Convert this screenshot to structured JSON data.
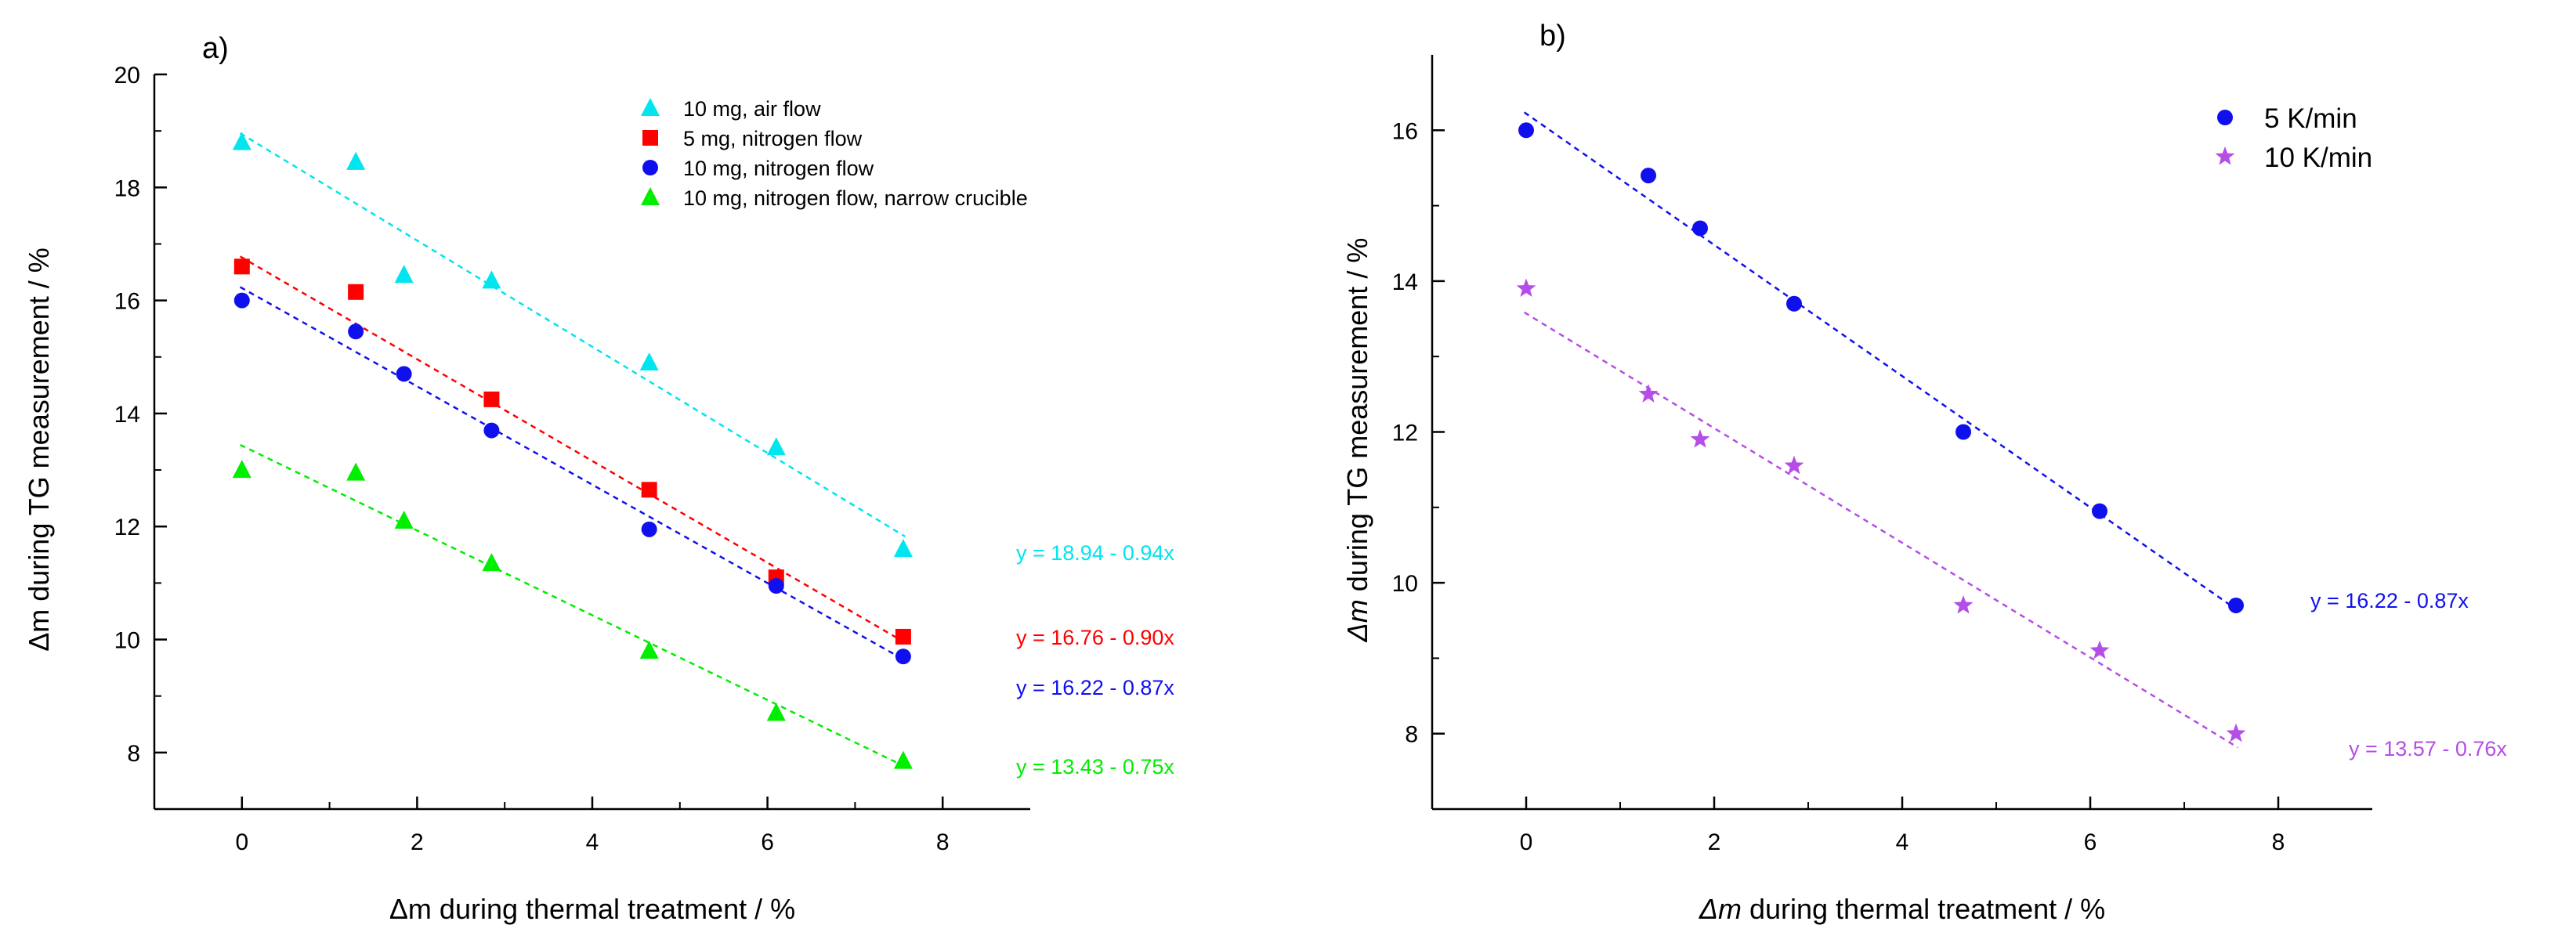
{
  "chart_data": [
    {
      "type": "scatter",
      "panel_label": "a)",
      "xlabel_symbol": "Δm",
      "xlabel_rest": " during thermal treatment / %",
      "ylabel_symbol": "Δm",
      "ylabel_rest": " during TG measurement / %",
      "xlim": [
        -1,
        9
      ],
      "ylim": [
        7,
        20
      ],
      "xticks": [
        0,
        2,
        4,
        6,
        8
      ],
      "yticks": [
        8,
        10,
        12,
        14,
        16,
        18,
        20
      ],
      "legend_position": "top-right",
      "series": [
        {
          "name": "10 mg, air flow",
          "marker": "triangle",
          "color": "#00e5ee",
          "x": [
            0,
            1.3,
            1.85,
            2.85,
            4.65,
            6.1,
            7.55
          ],
          "y": [
            18.8,
            18.45,
            16.45,
            16.35,
            14.9,
            13.4,
            11.6
          ],
          "fit": {
            "intercept": 18.94,
            "slope": -0.94,
            "label": "y = 18.94 - 0.94x"
          }
        },
        {
          "name": "5 mg, nitrogen flow",
          "marker": "square",
          "color": "#ff0000",
          "x": [
            0,
            1.3,
            2.85,
            4.65,
            6.1,
            7.55
          ],
          "y": [
            16.6,
            16.15,
            14.25,
            12.65,
            11.1,
            10.05
          ],
          "fit": {
            "intercept": 16.76,
            "slope": -0.9,
            "label": "y = 16.76 - 0.90x"
          }
        },
        {
          "name": "10 mg, nitrogen flow",
          "marker": "circle",
          "color": "#1010ee",
          "x": [
            0,
            1.3,
            1.85,
            2.85,
            4.65,
            6.1,
            7.55
          ],
          "y": [
            16.0,
            15.45,
            14.7,
            13.7,
            11.95,
            10.95,
            9.7
          ],
          "fit": {
            "intercept": 16.22,
            "slope": -0.87,
            "label": "y = 16.22 - 0.87x"
          }
        },
        {
          "name": "10 mg, nitrogen flow, narrow crucible",
          "marker": "triangle",
          "color": "#00ee00",
          "x": [
            0,
            1.3,
            1.85,
            2.85,
            4.65,
            6.1,
            7.55
          ],
          "y": [
            13.0,
            12.95,
            12.1,
            11.35,
            9.8,
            8.7,
            7.85
          ],
          "fit": {
            "intercept": 13.43,
            "slope": -0.75,
            "label": "y = 13.43 - 0.75x"
          }
        }
      ]
    },
    {
      "type": "scatter",
      "panel_label": "b)",
      "xlabel_symbol": "Δm",
      "xlabel_rest": " during thermal treatment / %",
      "ylabel_symbol": "Δm",
      "ylabel_rest": " during TG measurement / %",
      "xlim": [
        -1,
        9
      ],
      "ylim": [
        7,
        17
      ],
      "xticks": [
        0,
        2,
        4,
        6,
        8
      ],
      "yticks": [
        8,
        10,
        12,
        14,
        16
      ],
      "legend_position": "top-right",
      "series": [
        {
          "name": "5 K/min",
          "marker": "circle",
          "color": "#1010ee",
          "x": [
            0,
            1.3,
            1.85,
            2.85,
            4.65,
            6.1,
            7.55
          ],
          "y": [
            16.0,
            15.4,
            14.7,
            13.7,
            12.0,
            10.95,
            9.7
          ],
          "fit": {
            "intercept": 16.22,
            "slope": -0.87,
            "label": "y = 16.22 - 0.87x"
          }
        },
        {
          "name": "10 K/min",
          "marker": "star",
          "color": "#b44ee6",
          "x": [
            0,
            1.3,
            1.85,
            2.85,
            4.65,
            6.1,
            7.55
          ],
          "y": [
            13.9,
            12.5,
            11.9,
            11.55,
            9.7,
            9.1,
            8.0
          ],
          "fit": {
            "intercept": 13.57,
            "slope": -0.76,
            "label": "y = 13.57 - 0.76x"
          }
        }
      ]
    }
  ]
}
